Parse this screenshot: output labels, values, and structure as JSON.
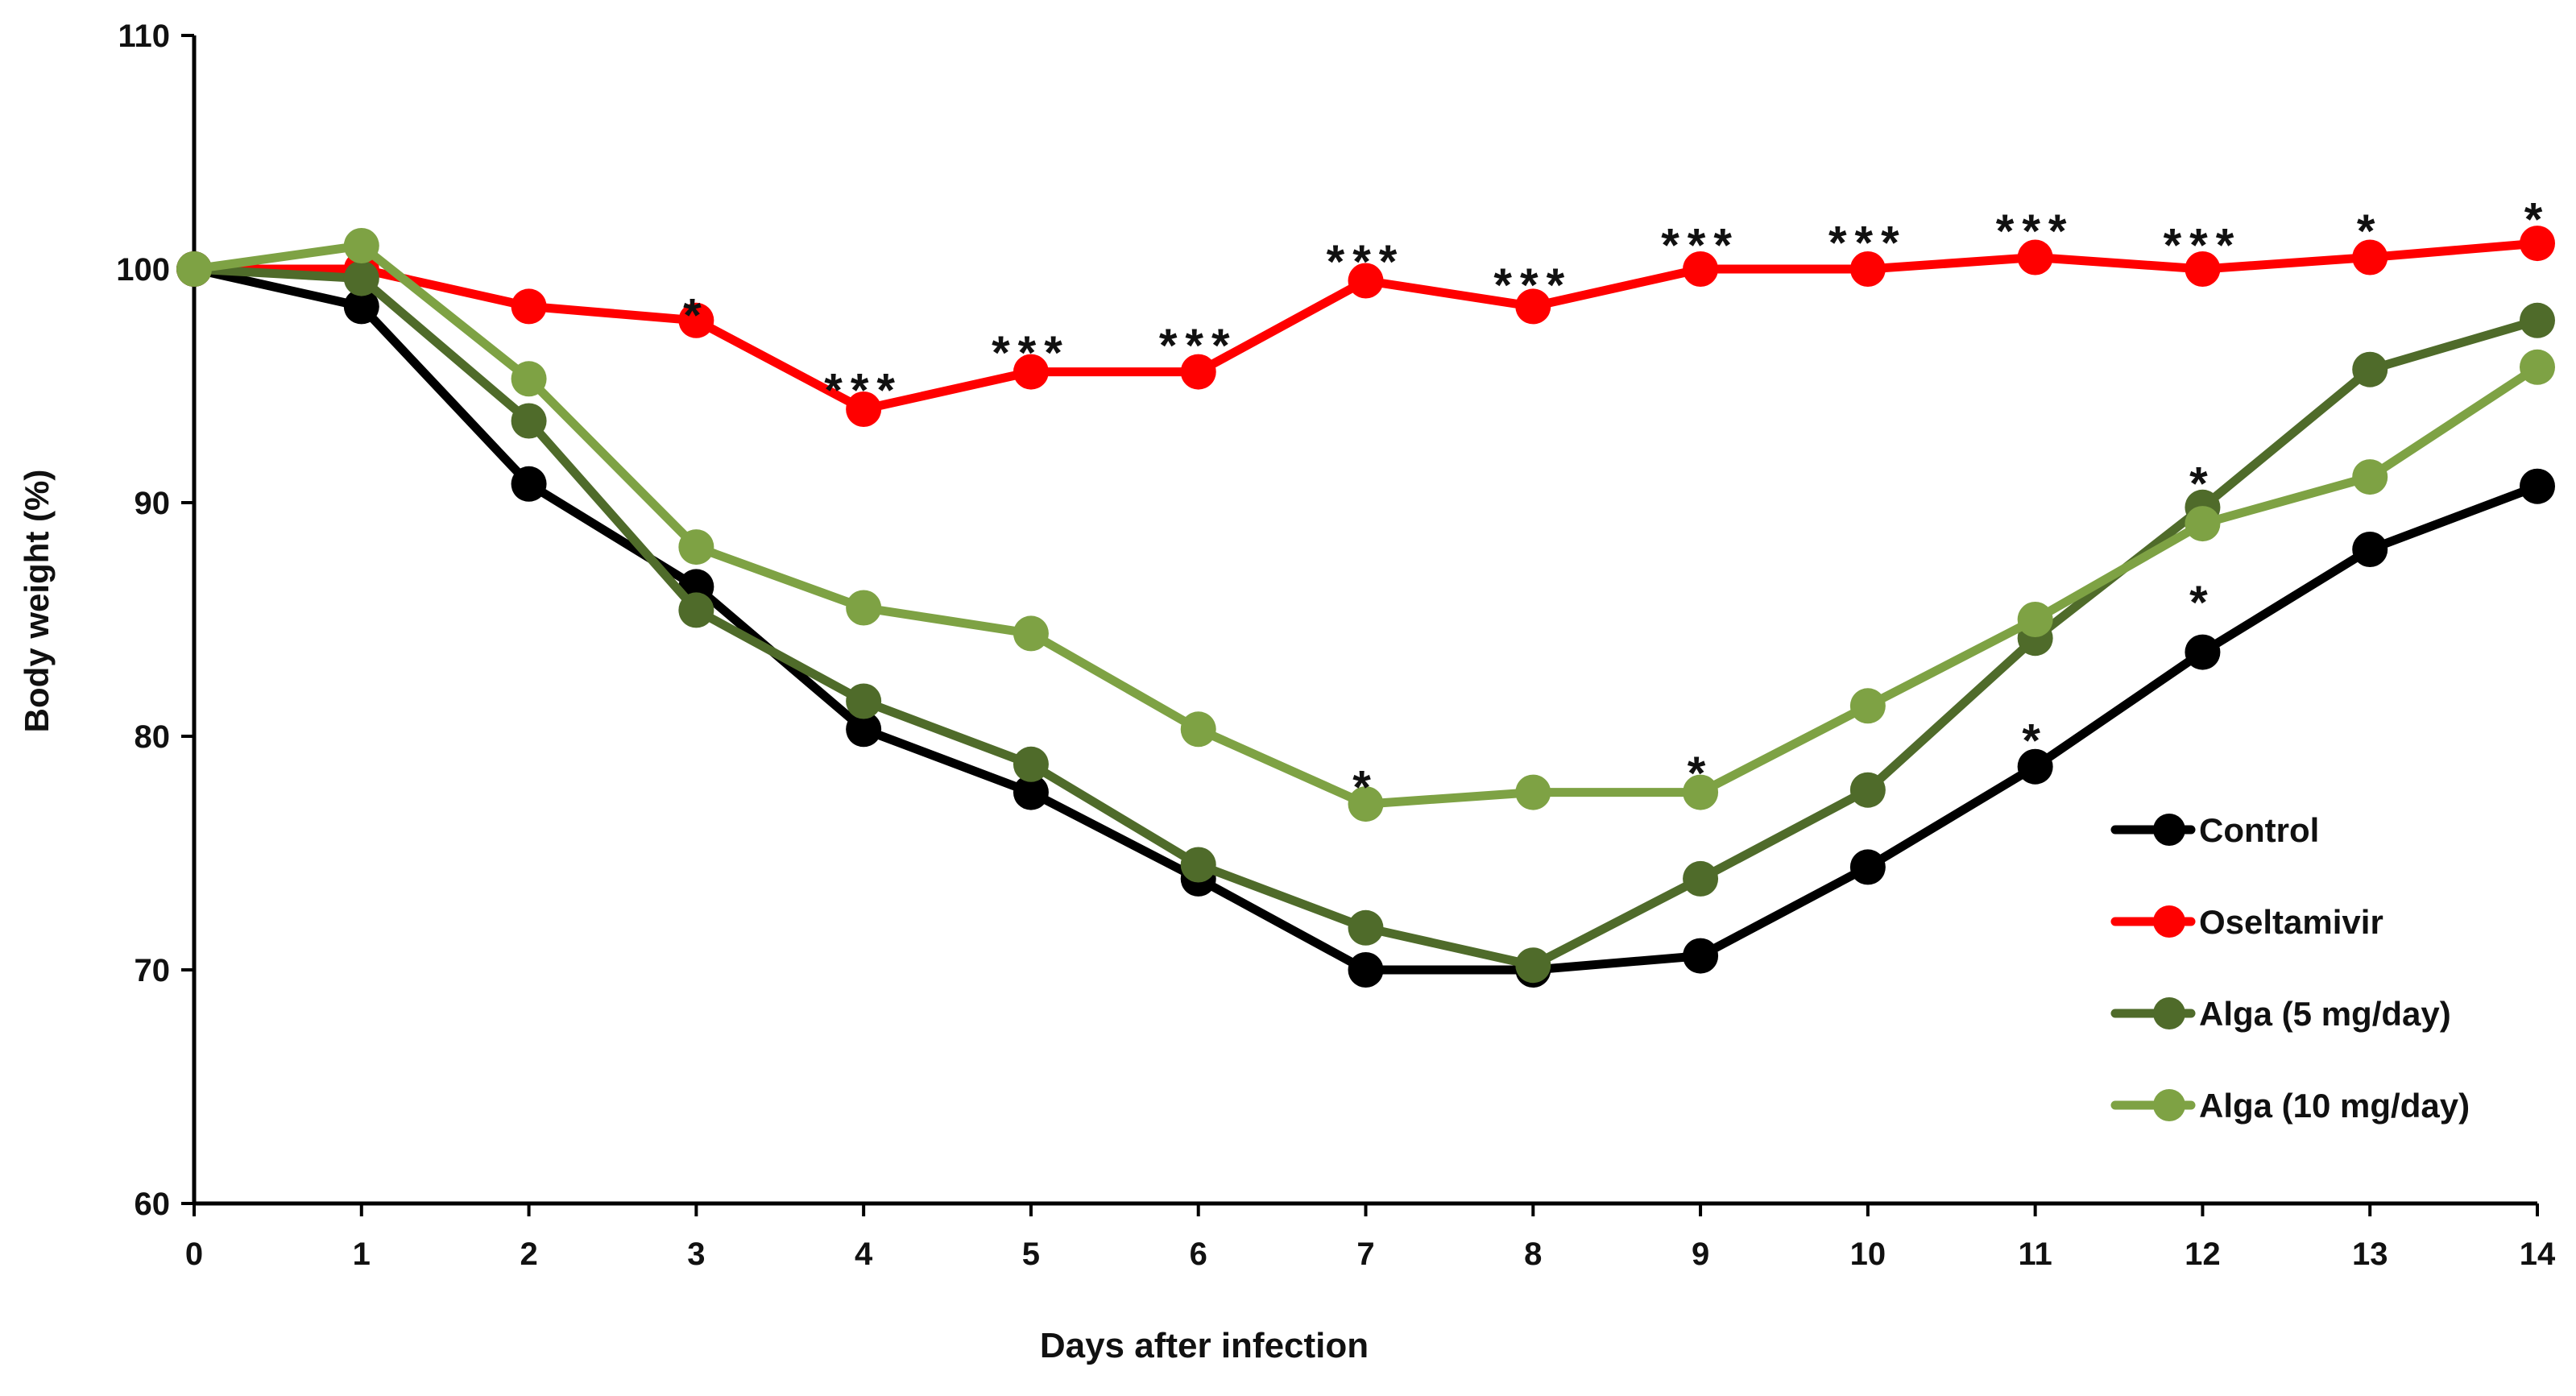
{
  "chart_data": {
    "type": "line",
    "title": "",
    "xlabel": "Days after infection",
    "ylabel": "Body weight (%)",
    "x": [
      0,
      1,
      2,
      3,
      4,
      5,
      6,
      7,
      8,
      9,
      10,
      11,
      12,
      13,
      14
    ],
    "x_tick_labels": [
      "0",
      "1",
      "2",
      "3",
      "4",
      "5",
      "6",
      "7",
      "8",
      "9",
      "10",
      "11",
      "12",
      "13",
      "14"
    ],
    "y_ticks": [
      60,
      70,
      80,
      90,
      100,
      110
    ],
    "y_tick_labels": [
      "60",
      "70",
      "80",
      "90",
      "100",
      "110"
    ],
    "xlim": [
      0,
      14
    ],
    "ylim": [
      60,
      110
    ],
    "grid": false,
    "legend_position": "bottom-right",
    "series": [
      {
        "name": "Control",
        "color": "#000000",
        "values": [
          100,
          98.4,
          90.8,
          86.4,
          80.3,
          77.6,
          73.9,
          70.0,
          70.0,
          70.6,
          74.4,
          78.7,
          83.6,
          88.0,
          90.7
        ]
      },
      {
        "name": "Oseltamivir",
        "color": "#ff0000",
        "values": [
          100,
          100,
          98.4,
          97.8,
          94.0,
          95.6,
          95.6,
          99.5,
          98.4,
          100,
          100,
          100.5,
          100,
          100.5,
          101.1
        ]
      },
      {
        "name": "Alga (5 mg/day)",
        "color": "#4f6b2a",
        "values": [
          100,
          99.6,
          93.5,
          85.4,
          81.5,
          78.8,
          74.5,
          71.8,
          70.2,
          73.9,
          77.7,
          84.2,
          89.8,
          95.7,
          97.8
        ]
      },
      {
        "name": "Alga (10 mg/day)",
        "color": "#7ea244",
        "values": [
          100,
          101.0,
          95.3,
          88.1,
          85.5,
          84.4,
          80.3,
          77.1,
          77.6,
          77.6,
          81.3,
          85.0,
          89.1,
          91.1,
          95.8
        ]
      }
    ],
    "annotations": [
      {
        "x": 3,
        "y": 98.5,
        "text": "*"
      },
      {
        "x": 4,
        "y": 95.3,
        "text": "***"
      },
      {
        "x": 5,
        "y": 96.9,
        "text": "***"
      },
      {
        "x": 6,
        "y": 97.2,
        "text": "***"
      },
      {
        "x": 7,
        "y": 100.8,
        "text": "***"
      },
      {
        "x": 8,
        "y": 99.8,
        "text": "***"
      },
      {
        "x": 9,
        "y": 101.5,
        "text": "***"
      },
      {
        "x": 10,
        "y": 101.6,
        "text": "***"
      },
      {
        "x": 11,
        "y": 102.1,
        "text": "***"
      },
      {
        "x": 12,
        "y": 101.5,
        "text": "***"
      },
      {
        "x": 13,
        "y": 102.1,
        "text": "*"
      },
      {
        "x": 14,
        "y": 102.6,
        "text": "*"
      },
      {
        "x": 7,
        "y": 78.3,
        "text": "*"
      },
      {
        "x": 9,
        "y": 78.9,
        "text": "*"
      },
      {
        "x": 11,
        "y": 80.3,
        "text": "*"
      },
      {
        "x": 12,
        "y": 91.3,
        "text": "*"
      },
      {
        "x": 12,
        "y": 86.2,
        "text": "*"
      }
    ]
  }
}
